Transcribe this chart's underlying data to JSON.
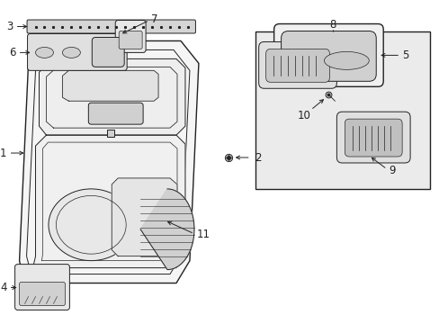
{
  "bg_color": "#ffffff",
  "line_color": "#222222",
  "label_color": "#000000",
  "gray_fill": "#e8e8e8",
  "gray_mid": "#d0d0d0",
  "gray_dark": "#b0b0b0",
  "box_fill": "#ebebeb",
  "font_size": 8.5,
  "fig_width": 4.89,
  "fig_height": 3.6,
  "dpi": 100
}
